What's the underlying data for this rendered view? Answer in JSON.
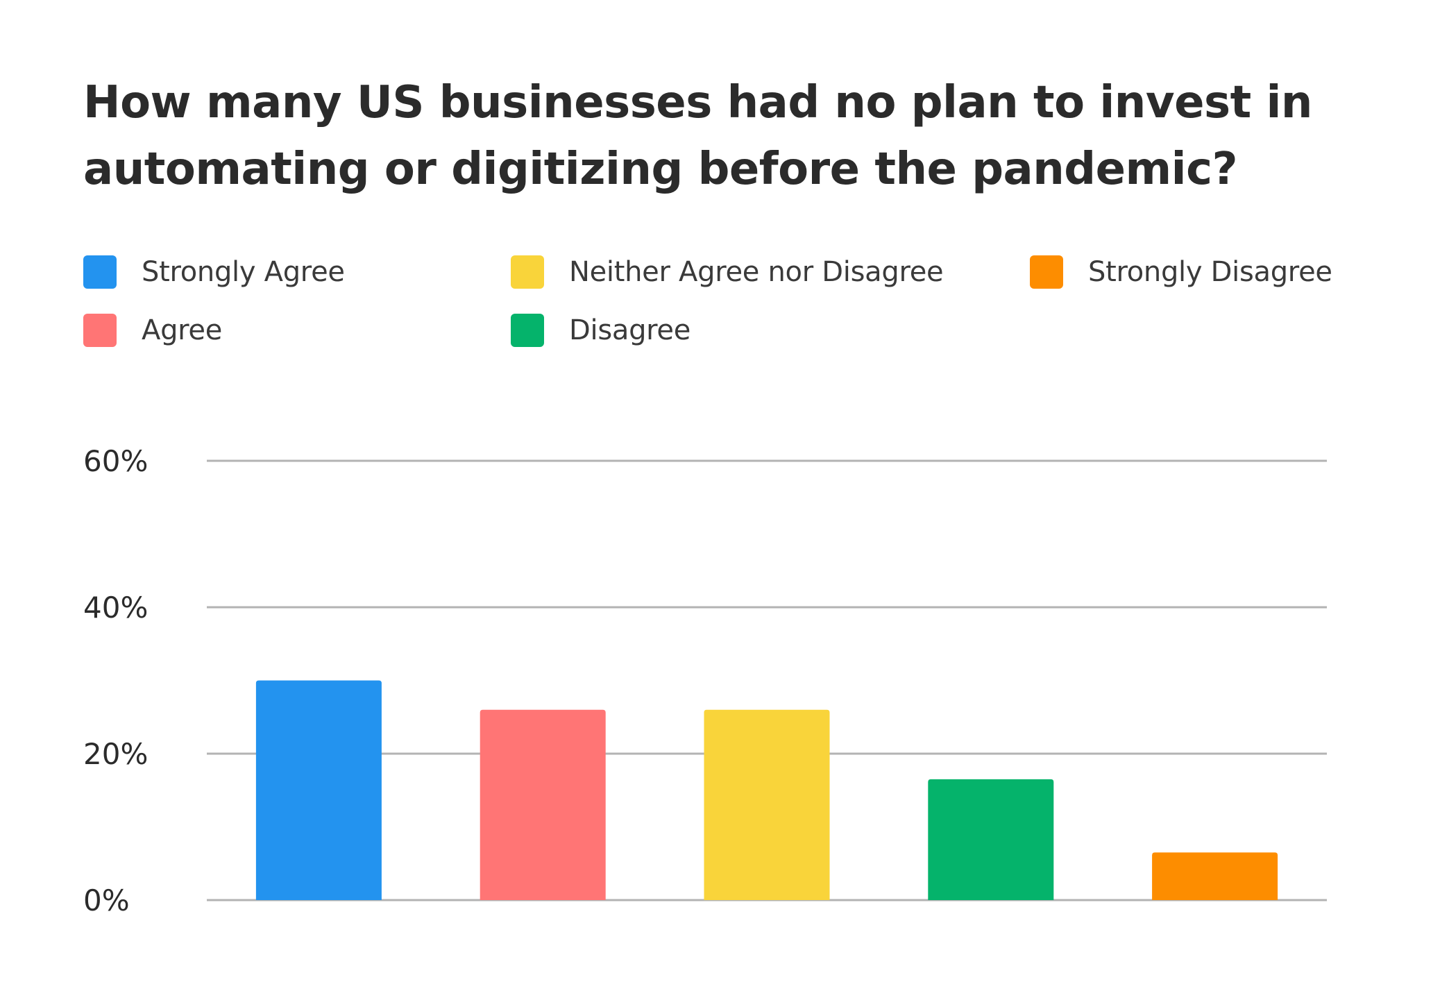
{
  "chart_data": {
    "type": "bar",
    "title": "How many US businesses had no plan to invest in automating or digitizing before the pandemic?",
    "xlabel": "",
    "ylabel": "",
    "categories": [
      "Strongly Agree",
      "Agree",
      "Neither Agree nor Disagree",
      "Disagree",
      "Strongly Disagree"
    ],
    "values": [
      30,
      26,
      26,
      16.5,
      6.5
    ],
    "colors": [
      "#2393ef",
      "#ff7575",
      "#f9d43a",
      "#05b36b",
      "#fd8d00"
    ],
    "ylim": [
      0,
      60
    ],
    "yticks": [
      0,
      20,
      40,
      60
    ],
    "ytick_labels": [
      "0%",
      "20%",
      "40%",
      "60%"
    ],
    "grid": true,
    "legend_placement": "top"
  }
}
